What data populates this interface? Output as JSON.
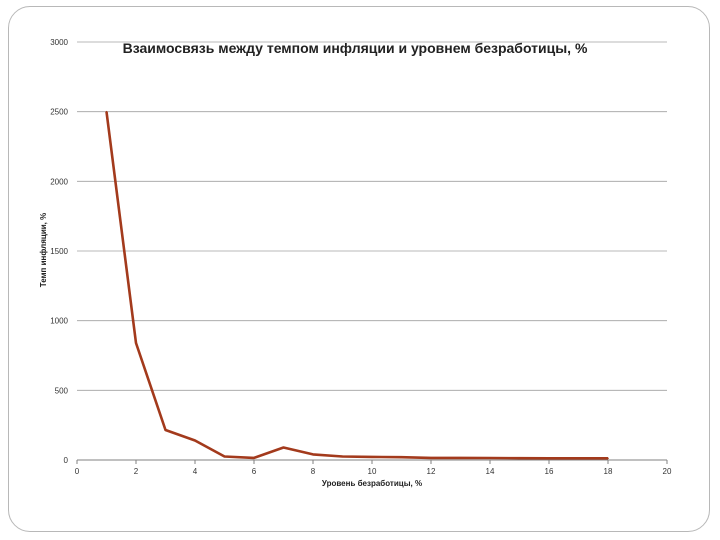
{
  "chart_data": {
    "type": "line",
    "title": "Взаимосвязь между темпом инфляции и уровнем безработицы, %",
    "xlabel": "Уровень безработицы, %",
    "ylabel": "Темп инфляции, %",
    "xlim": [
      0,
      20
    ],
    "ylim": [
      0,
      3000
    ],
    "x_ticks": [
      0,
      2,
      4,
      6,
      8,
      10,
      12,
      14,
      16,
      18,
      20
    ],
    "y_ticks": [
      0,
      500,
      1000,
      1500,
      2000,
      2500,
      3000
    ],
    "grid": true,
    "legend": "none",
    "series_color": "#a33a1c",
    "series": [
      {
        "x": [
          1,
          2,
          3,
          4,
          5,
          6,
          7,
          8,
          9,
          10,
          11,
          12,
          13,
          14,
          15,
          16,
          17,
          18
        ],
        "values": [
          2500,
          840,
          215,
          140,
          25,
          15,
          90,
          40,
          25,
          22,
          20,
          15,
          15,
          14,
          13,
          12,
          12,
          12
        ]
      }
    ]
  }
}
